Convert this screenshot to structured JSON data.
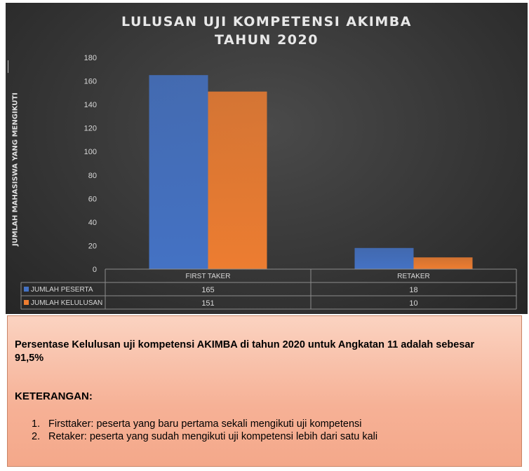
{
  "chart_data": {
    "type": "bar",
    "title_lines": [
      "LULUSAN UJI KOMPETENSI AKIMBA",
      "TAHUN 2020"
    ],
    "ylabel": "JUMLAH MAHASISWA YANG MENGIKUTI",
    "xlabel": "",
    "categories": [
      "FIRST TAKER",
      "RETAKER"
    ],
    "ylim": [
      0,
      180
    ],
    "yticks": [
      0,
      20,
      40,
      60,
      80,
      100,
      120,
      140,
      160,
      180
    ],
    "grid": false,
    "legend": "data-table-below",
    "series": [
      {
        "name": "JUMLAH PESERTA",
        "values": [
          165,
          18
        ],
        "color": "#4472c4"
      },
      {
        "name": "JUMLAH KELULUSAN",
        "values": [
          151,
          10
        ],
        "color": "#ed7d31"
      }
    ]
  },
  "notes": {
    "paragraph": "Persentase Kelulusan uji kompetensi AKIMBA di tahun 2020 untuk Angkatan 11 adalah sebesar 91,5%",
    "heading": "KETERANGAN:",
    "items": [
      {
        "num": "1.",
        "text": "Firsttaker: peserta yang baru pertama sekali mengikuti uji kompetensi"
      },
      {
        "num": "2.",
        "text": "Retaker: peserta yang sudah mengikuti uji kompetensi lebih dari satu kali"
      }
    ]
  }
}
